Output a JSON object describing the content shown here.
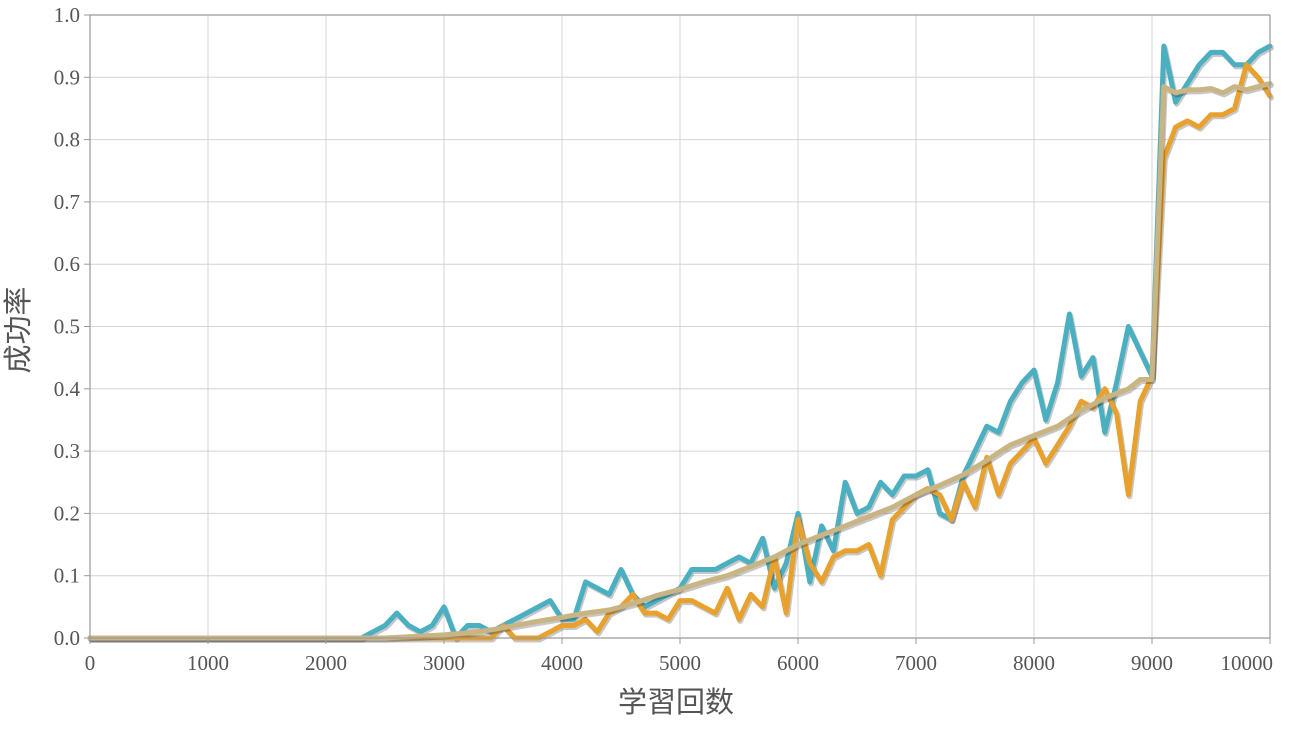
{
  "chart_data": {
    "type": "line",
    "title": "",
    "xlabel": "学習回数",
    "ylabel": "成功率",
    "xlim": [
      0,
      10000
    ],
    "ylim": [
      0.0,
      1.0
    ],
    "x_ticks": [
      0,
      1000,
      2000,
      3000,
      4000,
      5000,
      6000,
      7000,
      8000,
      9000,
      10000
    ],
    "y_ticks": [
      "0.0",
      "0.1",
      "0.2",
      "0.3",
      "0.4",
      "0.5",
      "0.6",
      "0.7",
      "0.8",
      "0.9",
      "1.0"
    ],
    "grid": true,
    "legend": "none",
    "series": [
      {
        "color": "#4ab0c1",
        "points": [
          [
            0,
            0
          ],
          [
            1000,
            0
          ],
          [
            2000,
            0
          ],
          [
            2300,
            0
          ],
          [
            2500,
            0.02
          ],
          [
            2600,
            0.04
          ],
          [
            2700,
            0.02
          ],
          [
            2800,
            0.01
          ],
          [
            2900,
            0.02
          ],
          [
            3000,
            0.05
          ],
          [
            3100,
            0
          ],
          [
            3200,
            0.02
          ],
          [
            3300,
            0.02
          ],
          [
            3400,
            0.01
          ],
          [
            3500,
            0.02
          ],
          [
            3600,
            0.03
          ],
          [
            3700,
            0.04
          ],
          [
            3800,
            0.05
          ],
          [
            3900,
            0.06
          ],
          [
            4000,
            0.03
          ],
          [
            4100,
            0.03
          ],
          [
            4200,
            0.09
          ],
          [
            4300,
            0.08
          ],
          [
            4400,
            0.07
          ],
          [
            4500,
            0.11
          ],
          [
            4600,
            0.07
          ],
          [
            4700,
            0.05
          ],
          [
            4800,
            0.06
          ],
          [
            4900,
            0.07
          ],
          [
            5000,
            0.08
          ],
          [
            5100,
            0.11
          ],
          [
            5200,
            0.11
          ],
          [
            5300,
            0.11
          ],
          [
            5400,
            0.12
          ],
          [
            5500,
            0.13
          ],
          [
            5600,
            0.12
          ],
          [
            5700,
            0.16
          ],
          [
            5800,
            0.08
          ],
          [
            5900,
            0.12
          ],
          [
            6000,
            0.2
          ],
          [
            6100,
            0.09
          ],
          [
            6200,
            0.18
          ],
          [
            6300,
            0.14
          ],
          [
            6400,
            0.25
          ],
          [
            6500,
            0.2
          ],
          [
            6600,
            0.21
          ],
          [
            6700,
            0.25
          ],
          [
            6800,
            0.23
          ],
          [
            6900,
            0.26
          ],
          [
            7000,
            0.26
          ],
          [
            7100,
            0.27
          ],
          [
            7200,
            0.2
          ],
          [
            7300,
            0.19
          ],
          [
            7400,
            0.26
          ],
          [
            7500,
            0.3
          ],
          [
            7600,
            0.34
          ],
          [
            7700,
            0.33
          ],
          [
            7800,
            0.38
          ],
          [
            7900,
            0.41
          ],
          [
            8000,
            0.43
          ],
          [
            8100,
            0.35
          ],
          [
            8200,
            0.41
          ],
          [
            8300,
            0.52
          ],
          [
            8400,
            0.42
          ],
          [
            8500,
            0.45
          ],
          [
            8600,
            0.33
          ],
          [
            8700,
            0.41
          ],
          [
            8800,
            0.5
          ],
          [
            8900,
            0.46
          ],
          [
            9000,
            0.42
          ],
          [
            9100,
            0.95
          ],
          [
            9200,
            0.86
          ],
          [
            9300,
            0.89
          ],
          [
            9400,
            0.92
          ],
          [
            9500,
            0.94
          ],
          [
            9600,
            0.94
          ],
          [
            9700,
            0.92
          ],
          [
            9800,
            0.92
          ],
          [
            9900,
            0.94
          ],
          [
            10000,
            0.95
          ]
        ]
      },
      {
        "color": "#e8a12c",
        "points": [
          [
            0,
            0
          ],
          [
            1000,
            0
          ],
          [
            2000,
            0
          ],
          [
            3000,
            0
          ],
          [
            3400,
            0
          ],
          [
            3500,
            0.02
          ],
          [
            3600,
            0
          ],
          [
            3700,
            0
          ],
          [
            3800,
            0
          ],
          [
            3900,
            0.01
          ],
          [
            4000,
            0.02
          ],
          [
            4100,
            0.02
          ],
          [
            4200,
            0.03
          ],
          [
            4300,
            0.01
          ],
          [
            4400,
            0.04
          ],
          [
            4500,
            0.05
          ],
          [
            4600,
            0.07
          ],
          [
            4700,
            0.04
          ],
          [
            4800,
            0.04
          ],
          [
            4900,
            0.03
          ],
          [
            5000,
            0.06
          ],
          [
            5100,
            0.06
          ],
          [
            5200,
            0.05
          ],
          [
            5300,
            0.04
          ],
          [
            5400,
            0.08
          ],
          [
            5500,
            0.03
          ],
          [
            5600,
            0.07
          ],
          [
            5700,
            0.05
          ],
          [
            5800,
            0.13
          ],
          [
            5900,
            0.04
          ],
          [
            6000,
            0.19
          ],
          [
            6100,
            0.12
          ],
          [
            6200,
            0.09
          ],
          [
            6300,
            0.13
          ],
          [
            6400,
            0.14
          ],
          [
            6500,
            0.14
          ],
          [
            6600,
            0.15
          ],
          [
            6700,
            0.1
          ],
          [
            6800,
            0.19
          ],
          [
            6900,
            0.21
          ],
          [
            7000,
            0.23
          ],
          [
            7100,
            0.24
          ],
          [
            7200,
            0.23
          ],
          [
            7300,
            0.19
          ],
          [
            7400,
            0.25
          ],
          [
            7500,
            0.21
          ],
          [
            7600,
            0.29
          ],
          [
            7700,
            0.23
          ],
          [
            7800,
            0.28
          ],
          [
            7900,
            0.3
          ],
          [
            8000,
            0.32
          ],
          [
            8100,
            0.28
          ],
          [
            8200,
            0.31
          ],
          [
            8300,
            0.34
          ],
          [
            8400,
            0.38
          ],
          [
            8500,
            0.37
          ],
          [
            8600,
            0.4
          ],
          [
            8700,
            0.36
          ],
          [
            8800,
            0.23
          ],
          [
            8900,
            0.38
          ],
          [
            9000,
            0.42
          ],
          [
            9100,
            0.77
          ],
          [
            9200,
            0.82
          ],
          [
            9300,
            0.83
          ],
          [
            9400,
            0.82
          ],
          [
            9500,
            0.84
          ],
          [
            9600,
            0.84
          ],
          [
            9700,
            0.85
          ],
          [
            9800,
            0.92
          ],
          [
            9900,
            0.9
          ],
          [
            10000,
            0.87
          ]
        ]
      },
      {
        "color": "#c9b483",
        "points": [
          [
            0,
            0
          ],
          [
            1000,
            0
          ],
          [
            2000,
            0
          ],
          [
            2500,
            0
          ],
          [
            2800,
            0.003
          ],
          [
            3000,
            0.005
          ],
          [
            3200,
            0.008
          ],
          [
            3400,
            0.013
          ],
          [
            3600,
            0.02
          ],
          [
            3800,
            0.027
          ],
          [
            4000,
            0.033
          ],
          [
            4200,
            0.04
          ],
          [
            4400,
            0.045
          ],
          [
            4600,
            0.055
          ],
          [
            4800,
            0.068
          ],
          [
            5000,
            0.078
          ],
          [
            5200,
            0.09
          ],
          [
            5400,
            0.1
          ],
          [
            5600,
            0.115
          ],
          [
            5800,
            0.13
          ],
          [
            6000,
            0.15
          ],
          [
            6200,
            0.165
          ],
          [
            6400,
            0.18
          ],
          [
            6600,
            0.195
          ],
          [
            6800,
            0.21
          ],
          [
            7000,
            0.23
          ],
          [
            7200,
            0.245
          ],
          [
            7400,
            0.262
          ],
          [
            7600,
            0.285
          ],
          [
            7800,
            0.31
          ],
          [
            8000,
            0.325
          ],
          [
            8200,
            0.34
          ],
          [
            8400,
            0.365
          ],
          [
            8600,
            0.385
          ],
          [
            8800,
            0.4
          ],
          [
            8900,
            0.415
          ],
          [
            9000,
            0.415
          ],
          [
            9100,
            0.885
          ],
          [
            9200,
            0.875
          ],
          [
            9300,
            0.88
          ],
          [
            9400,
            0.88
          ],
          [
            9500,
            0.882
          ],
          [
            9600,
            0.875
          ],
          [
            9700,
            0.885
          ],
          [
            9800,
            0.88
          ],
          [
            9900,
            0.885
          ],
          [
            10000,
            0.89
          ]
        ]
      }
    ]
  }
}
